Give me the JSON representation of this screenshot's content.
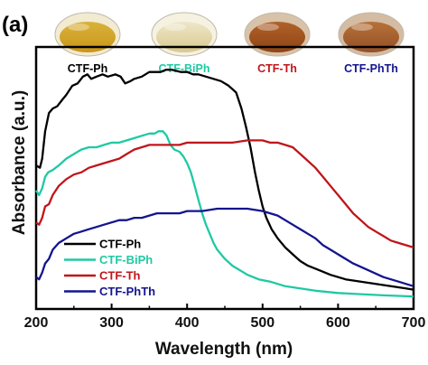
{
  "panel_label": "(a)",
  "chart_data": {
    "type": "line",
    "title": "",
    "xlabel": "Wavelength (nm)",
    "ylabel": "Absorbance (a.u.)",
    "xlim": [
      200,
      700
    ],
    "ylim": [
      0,
      1.15
    ],
    "x_ticks": [
      "200",
      "300",
      "400",
      "500",
      "600",
      "700"
    ],
    "y_ticks": [],
    "grid": false,
    "legend_position": "bottom-left",
    "series": [
      {
        "name": "CTF-Ph",
        "color": "#000000",
        "points": [
          [
            200,
            0.63
          ],
          [
            205,
            0.62
          ],
          [
            208,
            0.66
          ],
          [
            212,
            0.78
          ],
          [
            217,
            0.86
          ],
          [
            222,
            0.88
          ],
          [
            228,
            0.89
          ],
          [
            235,
            0.92
          ],
          [
            240,
            0.94
          ],
          [
            248,
            0.98
          ],
          [
            255,
            0.99
          ],
          [
            262,
            1.02
          ],
          [
            268,
            1.03
          ],
          [
            273,
            1.01
          ],
          [
            280,
            1.02
          ],
          [
            288,
            1.03
          ],
          [
            295,
            1.02
          ],
          [
            305,
            1.03
          ],
          [
            312,
            1.02
          ],
          [
            318,
            0.99
          ],
          [
            325,
            1.0
          ],
          [
            330,
            1.01
          ],
          [
            340,
            1.02
          ],
          [
            350,
            1.04
          ],
          [
            358,
            1.04
          ],
          [
            365,
            1.04
          ],
          [
            372,
            1.05
          ],
          [
            380,
            1.05
          ],
          [
            392,
            1.04
          ],
          [
            400,
            1.04
          ],
          [
            408,
            1.03
          ],
          [
            415,
            1.03
          ],
          [
            425,
            1.02
          ],
          [
            435,
            1.01
          ],
          [
            445,
            1.0
          ],
          [
            455,
            0.98
          ],
          [
            465,
            0.95
          ],
          [
            472,
            0.88
          ],
          [
            478,
            0.8
          ],
          [
            484,
            0.71
          ],
          [
            490,
            0.6
          ],
          [
            495,
            0.52
          ],
          [
            500,
            0.45
          ],
          [
            505,
            0.4
          ],
          [
            512,
            0.35
          ],
          [
            520,
            0.31
          ],
          [
            530,
            0.27
          ],
          [
            540,
            0.24
          ],
          [
            550,
            0.21
          ],
          [
            560,
            0.19
          ],
          [
            575,
            0.17
          ],
          [
            590,
            0.15
          ],
          [
            610,
            0.13
          ],
          [
            630,
            0.12
          ],
          [
            650,
            0.11
          ],
          [
            670,
            0.1
          ],
          [
            690,
            0.09
          ],
          [
            700,
            0.085
          ]
        ]
      },
      {
        "name": "CTF-BiPh",
        "color": "#1fc9a4",
        "points": [
          [
            200,
            0.52
          ],
          [
            204,
            0.5
          ],
          [
            208,
            0.53
          ],
          [
            212,
            0.58
          ],
          [
            216,
            0.6
          ],
          [
            222,
            0.61
          ],
          [
            230,
            0.63
          ],
          [
            240,
            0.66
          ],
          [
            250,
            0.68
          ],
          [
            260,
            0.7
          ],
          [
            270,
            0.71
          ],
          [
            280,
            0.71
          ],
          [
            290,
            0.72
          ],
          [
            300,
            0.73
          ],
          [
            310,
            0.73
          ],
          [
            320,
            0.74
          ],
          [
            330,
            0.75
          ],
          [
            340,
            0.76
          ],
          [
            350,
            0.77
          ],
          [
            357,
            0.77
          ],
          [
            362,
            0.78
          ],
          [
            368,
            0.78
          ],
          [
            373,
            0.76
          ],
          [
            378,
            0.72
          ],
          [
            383,
            0.7
          ],
          [
            390,
            0.69
          ],
          [
            395,
            0.67
          ],
          [
            400,
            0.64
          ],
          [
            405,
            0.6
          ],
          [
            410,
            0.54
          ],
          [
            415,
            0.48
          ],
          [
            420,
            0.42
          ],
          [
            425,
            0.37
          ],
          [
            430,
            0.33
          ],
          [
            435,
            0.29
          ],
          [
            440,
            0.26
          ],
          [
            450,
            0.22
          ],
          [
            460,
            0.19
          ],
          [
            470,
            0.17
          ],
          [
            480,
            0.15
          ],
          [
            495,
            0.13
          ],
          [
            510,
            0.12
          ],
          [
            530,
            0.1
          ],
          [
            550,
            0.09
          ],
          [
            570,
            0.08
          ],
          [
            600,
            0.07
          ],
          [
            630,
            0.065
          ],
          [
            660,
            0.06
          ],
          [
            700,
            0.055
          ]
        ]
      },
      {
        "name": "CTF-Th",
        "color": "#c0151a",
        "points": [
          [
            200,
            0.38
          ],
          [
            204,
            0.37
          ],
          [
            208,
            0.4
          ],
          [
            212,
            0.45
          ],
          [
            217,
            0.46
          ],
          [
            222,
            0.5
          ],
          [
            230,
            0.54
          ],
          [
            240,
            0.57
          ],
          [
            250,
            0.59
          ],
          [
            260,
            0.6
          ],
          [
            270,
            0.62
          ],
          [
            280,
            0.63
          ],
          [
            290,
            0.64
          ],
          [
            300,
            0.65
          ],
          [
            310,
            0.66
          ],
          [
            320,
            0.68
          ],
          [
            330,
            0.7
          ],
          [
            340,
            0.71
          ],
          [
            350,
            0.72
          ],
          [
            360,
            0.72
          ],
          [
            370,
            0.72
          ],
          [
            380,
            0.72
          ],
          [
            390,
            0.72
          ],
          [
            400,
            0.73
          ],
          [
            410,
            0.73
          ],
          [
            420,
            0.73
          ],
          [
            440,
            0.73
          ],
          [
            460,
            0.73
          ],
          [
            480,
            0.74
          ],
          [
            500,
            0.74
          ],
          [
            510,
            0.73
          ],
          [
            520,
            0.73
          ],
          [
            530,
            0.72
          ],
          [
            540,
            0.71
          ],
          [
            550,
            0.68
          ],
          [
            560,
            0.65
          ],
          [
            570,
            0.62
          ],
          [
            580,
            0.58
          ],
          [
            590,
            0.54
          ],
          [
            600,
            0.5
          ],
          [
            610,
            0.46
          ],
          [
            620,
            0.42
          ],
          [
            630,
            0.39
          ],
          [
            640,
            0.36
          ],
          [
            650,
            0.34
          ],
          [
            660,
            0.32
          ],
          [
            670,
            0.3
          ],
          [
            680,
            0.29
          ],
          [
            690,
            0.28
          ],
          [
            700,
            0.27
          ]
        ]
      },
      {
        "name": "CTF-PhTh",
        "color": "#14148f",
        "points": [
          [
            200,
            0.14
          ],
          [
            204,
            0.13
          ],
          [
            208,
            0.16
          ],
          [
            212,
            0.2
          ],
          [
            217,
            0.22
          ],
          [
            222,
            0.26
          ],
          [
            230,
            0.29
          ],
          [
            240,
            0.31
          ],
          [
            250,
            0.33
          ],
          [
            260,
            0.34
          ],
          [
            270,
            0.35
          ],
          [
            280,
            0.36
          ],
          [
            290,
            0.37
          ],
          [
            300,
            0.38
          ],
          [
            310,
            0.39
          ],
          [
            320,
            0.39
          ],
          [
            330,
            0.4
          ],
          [
            340,
            0.4
          ],
          [
            350,
            0.41
          ],
          [
            360,
            0.42
          ],
          [
            370,
            0.42
          ],
          [
            380,
            0.42
          ],
          [
            390,
            0.42
          ],
          [
            400,
            0.43
          ],
          [
            410,
            0.43
          ],
          [
            420,
            0.43
          ],
          [
            440,
            0.44
          ],
          [
            460,
            0.44
          ],
          [
            480,
            0.44
          ],
          [
            500,
            0.43
          ],
          [
            510,
            0.42
          ],
          [
            520,
            0.41
          ],
          [
            530,
            0.39
          ],
          [
            540,
            0.37
          ],
          [
            550,
            0.35
          ],
          [
            560,
            0.33
          ],
          [
            570,
            0.31
          ],
          [
            580,
            0.28
          ],
          [
            590,
            0.26
          ],
          [
            600,
            0.24
          ],
          [
            620,
            0.2
          ],
          [
            640,
            0.17
          ],
          [
            660,
            0.14
          ],
          [
            680,
            0.12
          ],
          [
            700,
            0.1
          ]
        ]
      }
    ]
  },
  "samples": [
    {
      "label": "CTF-Ph",
      "color": "#000000",
      "fill_top": "#d9b23a",
      "fill_bottom": "#c9961a",
      "rim": "#f2ebd2"
    },
    {
      "label": "CTF-BiPh",
      "color": "#1fc9a4",
      "fill_top": "#eee6c8",
      "fill_bottom": "#d9c98f",
      "rim": "#f6f2e2"
    },
    {
      "label": "CTF-Th",
      "color": "#c0151a",
      "fill_top": "#b0622b",
      "fill_bottom": "#8f4414",
      "rim": "#d8c3a8"
    },
    {
      "label": "CTF-PhTh",
      "color": "#14148f",
      "fill_top": "#b6713a",
      "fill_bottom": "#955026",
      "rim": "#d4bca3"
    }
  ]
}
